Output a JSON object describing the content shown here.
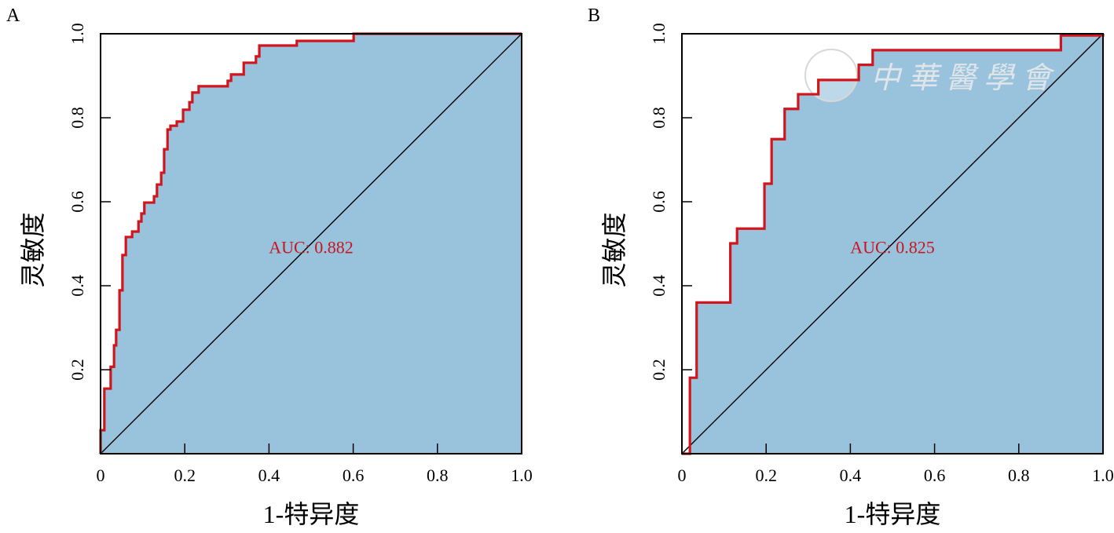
{
  "colors": {
    "fill": "#99c3dd",
    "curve": "#d0151c",
    "diagonal": "#000000",
    "auc_text": "#c8161d",
    "frame": "#000000"
  },
  "chart_data": [
    {
      "type": "line",
      "panel_label": "A",
      "xlabel": "1-特异度",
      "ylabel": "灵敏度",
      "xlim": [
        0,
        1
      ],
      "ylim": [
        0,
        1
      ],
      "x_ticks": [
        {
          "value": 0,
          "label": "0"
        },
        {
          "value": 0.2,
          "label": "0.2"
        },
        {
          "value": 0.4,
          "label": "0.4"
        },
        {
          "value": 0.6,
          "label": "0.6"
        },
        {
          "value": 0.8,
          "label": "0.8"
        },
        {
          "value": 1.0,
          "label": "1.0"
        }
      ],
      "y_ticks": [
        {
          "value": 0.2,
          "label": "0.2"
        },
        {
          "value": 0.4,
          "label": "0.4"
        },
        {
          "value": 0.6,
          "label": "0.6"
        },
        {
          "value": 0.8,
          "label": "0.8"
        },
        {
          "value": 1.0,
          "label": "1.0"
        }
      ],
      "annotation": "AUC: 0.882",
      "auc": 0.882,
      "series": [
        {
          "name": "ROC",
          "step": true,
          "points": [
            [
              0,
              0
            ],
            [
              0,
              0.056
            ],
            [
              0.009,
              0.056
            ],
            [
              0.009,
              0.155
            ],
            [
              0.024,
              0.155
            ],
            [
              0.024,
              0.207
            ],
            [
              0.032,
              0.207
            ],
            [
              0.032,
              0.258
            ],
            [
              0.037,
              0.258
            ],
            [
              0.037,
              0.295
            ],
            [
              0.045,
              0.295
            ],
            [
              0.045,
              0.389
            ],
            [
              0.052,
              0.389
            ],
            [
              0.052,
              0.473
            ],
            [
              0.06,
              0.473
            ],
            [
              0.06,
              0.516
            ],
            [
              0.075,
              0.516
            ],
            [
              0.075,
              0.529
            ],
            [
              0.09,
              0.529
            ],
            [
              0.09,
              0.553
            ],
            [
              0.097,
              0.553
            ],
            [
              0.097,
              0.572
            ],
            [
              0.104,
              0.572
            ],
            [
              0.104,
              0.598
            ],
            [
              0.127,
              0.598
            ],
            [
              0.127,
              0.613
            ],
            [
              0.134,
              0.613
            ],
            [
              0.134,
              0.641
            ],
            [
              0.144,
              0.641
            ],
            [
              0.144,
              0.669
            ],
            [
              0.151,
              0.669
            ],
            [
              0.151,
              0.725
            ],
            [
              0.159,
              0.725
            ],
            [
              0.159,
              0.772
            ],
            [
              0.166,
              0.772
            ],
            [
              0.166,
              0.781
            ],
            [
              0.181,
              0.781
            ],
            [
              0.181,
              0.791
            ],
            [
              0.196,
              0.791
            ],
            [
              0.196,
              0.819
            ],
            [
              0.211,
              0.819
            ],
            [
              0.211,
              0.837
            ],
            [
              0.218,
              0.837
            ],
            [
              0.218,
              0.86
            ],
            [
              0.233,
              0.86
            ],
            [
              0.233,
              0.875
            ],
            [
              0.302,
              0.875
            ],
            [
              0.302,
              0.888
            ],
            [
              0.31,
              0.888
            ],
            [
              0.31,
              0.903
            ],
            [
              0.34,
              0.903
            ],
            [
              0.34,
              0.931
            ],
            [
              0.369,
              0.931
            ],
            [
              0.369,
              0.946
            ],
            [
              0.377,
              0.946
            ],
            [
              0.377,
              0.972
            ],
            [
              0.466,
              0.972
            ],
            [
              0.466,
              0.983
            ],
            [
              0.601,
              0.983
            ],
            [
              0.601,
              1
            ],
            [
              1,
              1
            ]
          ]
        }
      ]
    },
    {
      "type": "line",
      "panel_label": "B",
      "xlabel": "1-特异度",
      "ylabel": "灵敏度",
      "xlim": [
        0,
        1
      ],
      "ylim": [
        0,
        1
      ],
      "x_ticks": [
        {
          "value": 0,
          "label": "0"
        },
        {
          "value": 0.2,
          "label": "0.2"
        },
        {
          "value": 0.4,
          "label": "0.4"
        },
        {
          "value": 0.6,
          "label": "0.6"
        },
        {
          "value": 0.8,
          "label": "0.8"
        },
        {
          "value": 1.0,
          "label": "1.0"
        }
      ],
      "y_ticks": [
        {
          "value": 0.2,
          "label": "0.2"
        },
        {
          "value": 0.4,
          "label": "0.4"
        },
        {
          "value": 0.6,
          "label": "0.6"
        },
        {
          "value": 0.8,
          "label": "0.8"
        },
        {
          "value": 1.0,
          "label": "1.0"
        }
      ],
      "annotation": "AUC: 0.825",
      "auc": 0.825,
      "watermark": "中華醫學會",
      "series": [
        {
          "name": "ROC",
          "step": true,
          "points": [
            [
              0,
              0
            ],
            [
              0.019,
              0
            ],
            [
              0.019,
              0.181
            ],
            [
              0.035,
              0.181
            ],
            [
              0.035,
              0.36
            ],
            [
              0.115,
              0.36
            ],
            [
              0.115,
              0.501
            ],
            [
              0.131,
              0.501
            ],
            [
              0.131,
              0.536
            ],
            [
              0.196,
              0.536
            ],
            [
              0.196,
              0.643
            ],
            [
              0.213,
              0.643
            ],
            [
              0.213,
              0.749
            ],
            [
              0.244,
              0.749
            ],
            [
              0.244,
              0.821
            ],
            [
              0.276,
              0.821
            ],
            [
              0.276,
              0.856
            ],
            [
              0.324,
              0.856
            ],
            [
              0.324,
              0.89
            ],
            [
              0.42,
              0.89
            ],
            [
              0.42,
              0.926
            ],
            [
              0.453,
              0.926
            ],
            [
              0.453,
              0.961
            ],
            [
              0.9,
              0.961
            ],
            [
              0.9,
              0.996
            ],
            [
              1,
              0.996
            ],
            [
              1,
              1
            ]
          ]
        }
      ]
    }
  ]
}
